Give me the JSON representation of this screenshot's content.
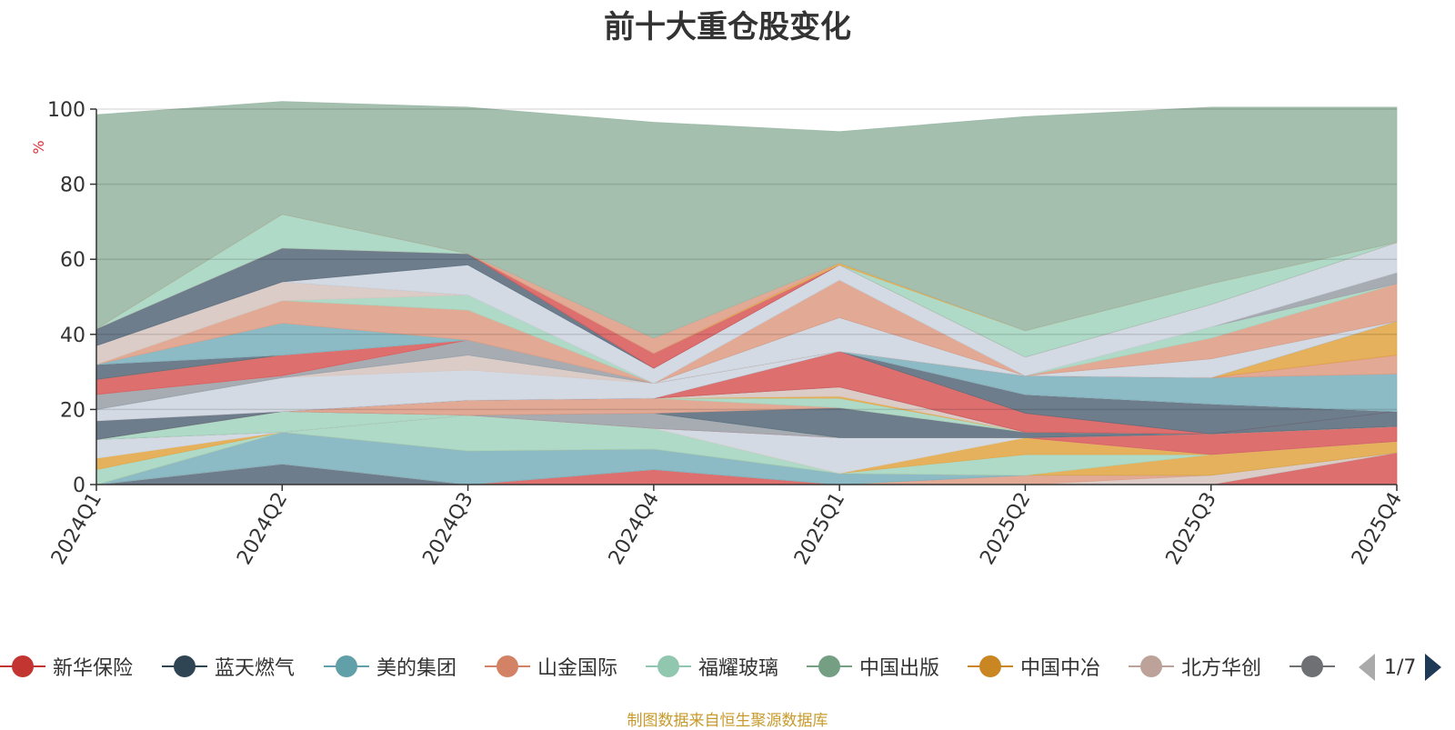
{
  "chart_data": {
    "type": "area",
    "stacked": true,
    "title": "前十大重仓股变化",
    "ylabel": "%",
    "ylim": [
      0,
      100
    ],
    "yticks": [
      0,
      20,
      40,
      60,
      80,
      100
    ],
    "grid": true,
    "categories": [
      "2024Q1",
      "2024Q2",
      "2024Q3",
      "2024Q4",
      "2025Q1",
      "2025Q2",
      "2025Q3",
      "2025Q4"
    ],
    "series": [
      {
        "name": "",
        "color": "#d95f5f",
        "values": [
          0,
          0,
          0,
          4,
          0,
          0,
          0,
          8.5
        ]
      },
      {
        "name": "",
        "color": "#5e6f80",
        "values": [
          0,
          5.5,
          0,
          0,
          0,
          0,
          0,
          0
        ]
      },
      {
        "name": "",
        "color": "#d8c6c1",
        "values": [
          0,
          0,
          0,
          0,
          0,
          0,
          2.5,
          0
        ]
      },
      {
        "name": "",
        "color": "#dfa08a",
        "values": [
          0,
          0,
          0,
          0,
          0,
          2.5,
          0,
          0
        ]
      },
      {
        "name": "",
        "color": "#7fb4bf",
        "values": [
          0,
          8.5,
          9,
          5.5,
          3,
          0,
          0,
          0
        ]
      },
      {
        "name": "",
        "color": "#e2a84a",
        "values": [
          0,
          0,
          0,
          0,
          0,
          0,
          5.5,
          3
        ]
      },
      {
        "name": "",
        "color": "#a6d6c2",
        "values": [
          4,
          0,
          9.5,
          5.5,
          0,
          5.5,
          0,
          0
        ]
      },
      {
        "name": "",
        "color": "#e2a84a",
        "values": [
          3,
          0,
          0,
          0,
          0,
          4.5,
          0,
          0
        ]
      },
      {
        "name": "",
        "color": "#cfd6e0",
        "values": [
          5,
          0,
          0,
          0,
          9.5,
          0,
          0,
          0
        ]
      },
      {
        "name": "",
        "color": "#d95f5f",
        "values": [
          0,
          0,
          0,
          0,
          0,
          0,
          5.5,
          4
        ]
      },
      {
        "name": "",
        "color": "#9da3ab",
        "values": [
          0,
          0,
          0,
          4,
          0,
          0,
          0,
          0
        ]
      },
      {
        "name": "",
        "color": "#a6d6c2",
        "values": [
          0,
          5.5,
          0,
          0,
          0,
          0,
          0,
          0
        ]
      },
      {
        "name": "",
        "color": "#5e6f80",
        "values": [
          0,
          0,
          0,
          0,
          8,
          1.5,
          0,
          0
        ]
      },
      {
        "name": "",
        "color": "#dfa08a",
        "values": [
          0,
          0,
          4,
          4,
          0,
          0,
          0,
          0
        ]
      },
      {
        "name": "",
        "color": "#a6d6c2",
        "values": [
          0,
          0,
          0,
          0,
          2.5,
          0,
          0,
          0
        ]
      },
      {
        "name": "",
        "color": "#e2a84a",
        "values": [
          0,
          0,
          0,
          0,
          0.5,
          0,
          0,
          0
        ]
      },
      {
        "name": "",
        "color": "#d8c6c1",
        "values": [
          0,
          0,
          0,
          0,
          2.5,
          0,
          0,
          0
        ]
      },
      {
        "name": "",
        "color": "#5e6f80",
        "values": [
          5,
          0,
          0,
          0,
          0,
          0,
          0,
          4
        ]
      },
      {
        "name": "",
        "color": "#d95f5f",
        "values": [
          0,
          0,
          0,
          0,
          9.5,
          5,
          0,
          0
        ]
      },
      {
        "name": "",
        "color": "#5e6f80",
        "values": [
          0,
          0,
          0,
          0,
          0,
          5,
          8,
          0
        ]
      },
      {
        "name": "",
        "color": "#cfd6e0",
        "values": [
          3,
          9,
          8,
          4,
          0,
          0,
          0,
          0
        ]
      },
      {
        "name": "",
        "color": "#d8c6c1",
        "values": [
          0,
          0,
          4,
          0,
          0,
          0,
          0,
          0
        ]
      },
      {
        "name": "",
        "color": "#7fb4bf",
        "values": [
          0,
          0,
          0,
          0,
          0,
          5,
          7,
          10
        ]
      },
      {
        "name": "",
        "color": "#9da3ab",
        "values": [
          4,
          0.5,
          4,
          0,
          0,
          0,
          0,
          0
        ]
      },
      {
        "name": "",
        "color": "#dfa08a",
        "values": [
          0,
          0,
          0,
          0,
          0,
          0,
          0,
          5
        ]
      },
      {
        "name": "",
        "color": "#d95f5f",
        "values": [
          4,
          5.5,
          0,
          0,
          0,
          0,
          0,
          0
        ]
      },
      {
        "name": "",
        "color": "#e2a84a",
        "values": [
          0,
          0,
          0,
          0,
          0,
          0,
          0,
          9
        ]
      },
      {
        "name": "",
        "color": "#5e6f80",
        "values": [
          4,
          0,
          0,
          0,
          0,
          0,
          0,
          0
        ]
      },
      {
        "name": "",
        "color": "#cfd6e0",
        "values": [
          0,
          0,
          0,
          0,
          9,
          0,
          5,
          0
        ]
      },
      {
        "name": "",
        "color": "#7fb4bf",
        "values": [
          0,
          8.5,
          0,
          0,
          0,
          0,
          0,
          0
        ]
      },
      {
        "name": "",
        "color": "#dfa08a",
        "values": [
          0,
          6,
          8,
          0,
          10,
          0,
          5.5,
          10
        ]
      },
      {
        "name": "",
        "color": "#a6d6c2",
        "values": [
          0,
          0,
          4,
          0,
          0,
          0,
          3,
          0
        ]
      },
      {
        "name": "",
        "color": "#d8c6c1",
        "values": [
          5,
          5,
          0,
          0,
          0,
          0,
          0,
          0
        ]
      },
      {
        "name": "",
        "color": "#9da3ab",
        "values": [
          0,
          0,
          0,
          0,
          0,
          0,
          0,
          3
        ]
      },
      {
        "name": "",
        "color": "#cfd6e0",
        "values": [
          0,
          0,
          8,
          4,
          4,
          5,
          6,
          8
        ]
      },
      {
        "name": "",
        "color": "#5e6f80",
        "values": [
          4.5,
          9,
          3,
          0,
          0,
          0,
          0,
          0
        ]
      },
      {
        "name": "",
        "color": "#d95f5f",
        "values": [
          0,
          0,
          0,
          4,
          0,
          0,
          0,
          0
        ]
      },
      {
        "name": "",
        "color": "#a6d6c2",
        "values": [
          0,
          9,
          0,
          0,
          0,
          7,
          5.5,
          0
        ]
      },
      {
        "name": "",
        "color": "#e2a84a",
        "values": [
          0,
          0,
          0,
          0,
          0.5,
          0,
          0,
          0
        ]
      },
      {
        "name": "",
        "color": "#dfa08a",
        "values": [
          0,
          0,
          0,
          4,
          0,
          0,
          0,
          0
        ]
      },
      {
        "name": "",
        "color": "#9bb8a6",
        "values": [
          57,
          30,
          39,
          57.5,
          35,
          57,
          47,
          36
        ]
      }
    ],
    "legend": {
      "position": "bottom",
      "page": "1/7",
      "items": [
        {
          "label": "新华保险",
          "color": "#c23531"
        },
        {
          "label": "蓝天燃气",
          "color": "#2f4554"
        },
        {
          "label": "美的集团",
          "color": "#61a0a8"
        },
        {
          "label": "山金国际",
          "color": "#d48265"
        },
        {
          "label": "福耀玻璃",
          "color": "#91c7ae"
        },
        {
          "label": "中国出版",
          "color": "#749f83"
        },
        {
          "label": "中国中冶",
          "color": "#ca8622"
        },
        {
          "label": "北方华创",
          "color": "#bda29a"
        },
        {
          "label": "",
          "color": "#6e7074"
        }
      ]
    },
    "source_note": "制图数据来自恒生聚源数据库"
  }
}
